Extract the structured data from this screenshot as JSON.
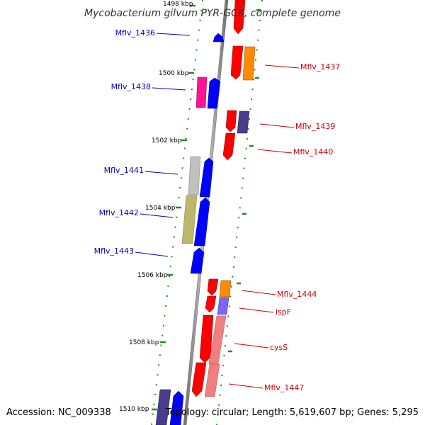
{
  "title": "Mycobacterium gilvum PYR-GCK, complete genome",
  "footer": {
    "accession": "Accession: NC_009338",
    "summary": "Topology: circular; Length: 5,619,607 bp; Genes: 5,295"
  },
  "ruler": [
    "1498 kbp",
    "1500 kbp",
    "1502 kbp",
    "1504 kbp",
    "1506 kbp",
    "1508 kbp",
    "1510 kbp"
  ],
  "colors": {
    "backbone": "#808080",
    "tick": "#228B22",
    "label_minus": "#0000CC",
    "label_plus": "#CC0000"
  },
  "gene_labels": {
    "minus": [
      "Mflv_1436",
      "Mflv_1438",
      "Mflv_1441",
      "Mflv_1442",
      "Mflv_1443"
    ],
    "plus": [
      "Mflv_1437",
      "Mflv_1439",
      "Mflv_1440",
      "Mflv_1444",
      "ispF",
      "cysS",
      "Mflv_1447"
    ]
  }
}
